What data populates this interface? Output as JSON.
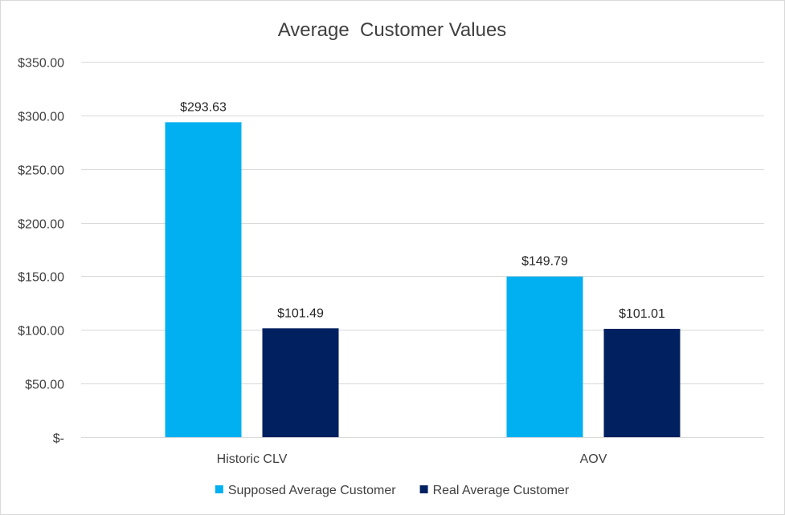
{
  "chart_data": {
    "type": "bar",
    "title": "Average  Customer Values",
    "xlabel": "",
    "ylabel": "",
    "categories": [
      "Historic CLV",
      "AOV"
    ],
    "series": [
      {
        "name": "Supposed Average Customer",
        "values": [
          293.63,
          149.79
        ],
        "color": "#00B0F0"
      },
      {
        "name": "Real Average Customer",
        "values": [
          101.49,
          101.01
        ],
        "color": "#002060"
      }
    ],
    "data_labels": [
      [
        "$293.63",
        "$149.79"
      ],
      [
        "$101.49",
        "$101.01"
      ]
    ],
    "ylim": [
      0,
      350
    ],
    "yticks": [
      0,
      50,
      100,
      150,
      200,
      250,
      300,
      350
    ],
    "ytick_labels": [
      "$-",
      "$50.00",
      "$100.00",
      "$150.00",
      "$200.00",
      "$250.00",
      "$300.00",
      "$350.00"
    ],
    "grid": true,
    "legend_position": "bottom"
  }
}
